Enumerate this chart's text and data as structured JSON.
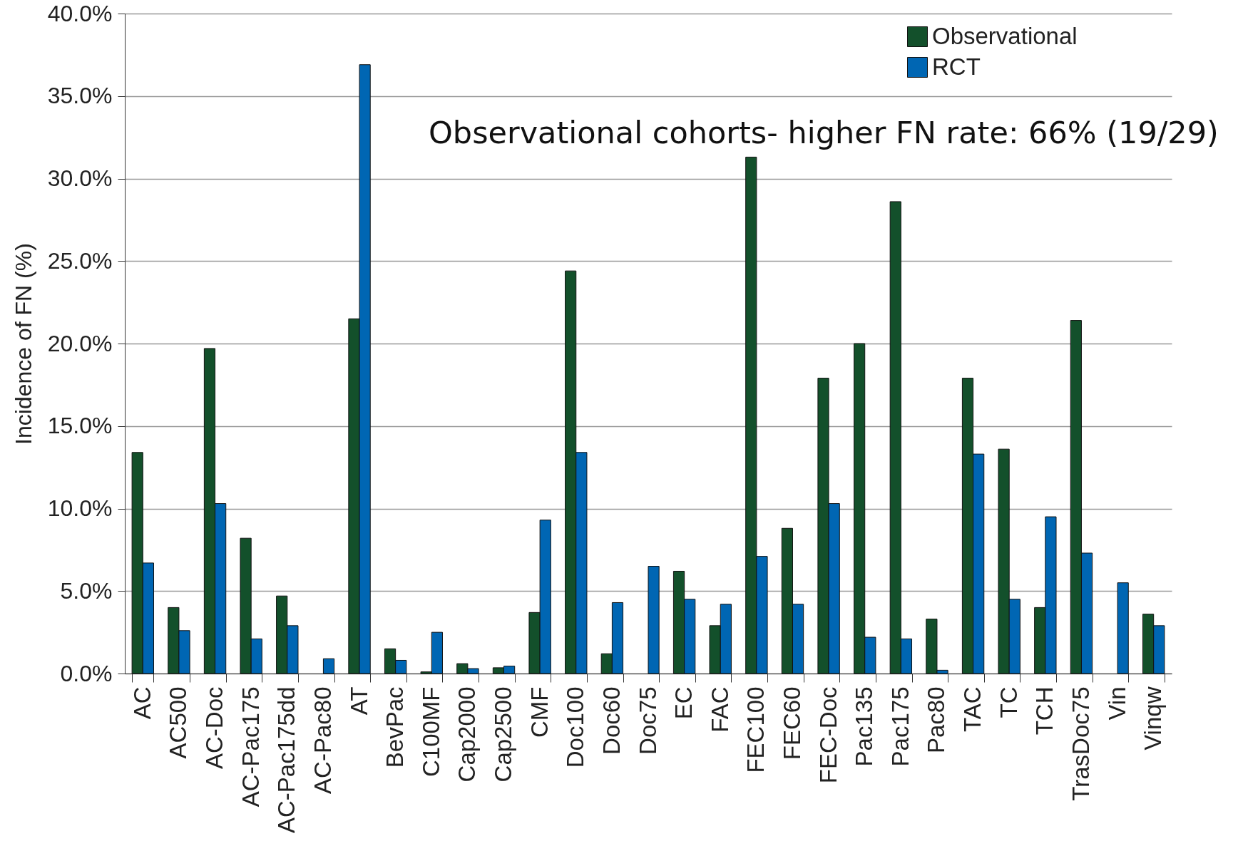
{
  "chart_data": {
    "type": "bar",
    "ylabel": "Incidence of FN (%)",
    "annotations": [
      "Observational cohorts- higher FN rate: 66% (19/29)"
    ],
    "categories": [
      "AC",
      "AC500",
      "AC-Doc",
      "AC-Pac175",
      "AC-Pac175dd",
      "AC-Pac80",
      "AT",
      "BevPac",
      "C100MF",
      "Cap2000",
      "Cap2500",
      "CMF",
      "Doc100",
      "Doc60",
      "Doc75",
      "EC",
      "FAC",
      "FEC100",
      "FEC60",
      "FEC-Doc",
      "Pac135",
      "Pac175",
      "Pac80",
      "TAC",
      "TC",
      "TCH",
      "TrasDoc75",
      "Vin",
      "Vinqw"
    ],
    "series": [
      {
        "name": "Observational",
        "color": "#13502b",
        "values": [
          13.4,
          4.0,
          19.7,
          8.2,
          4.7,
          null,
          21.5,
          1.5,
          0.1,
          0.6,
          0.35,
          3.7,
          24.4,
          1.2,
          null,
          6.2,
          2.9,
          31.3,
          8.8,
          17.9,
          20.0,
          28.6,
          3.3,
          17.9,
          13.6,
          4.0,
          21.4,
          null,
          3.6
        ]
      },
      {
        "name": "RCT",
        "color": "#0066b3",
        "values": [
          6.7,
          2.6,
          10.3,
          2.1,
          2.9,
          0.9,
          36.9,
          0.8,
          2.5,
          0.3,
          0.45,
          9.3,
          13.4,
          4.3,
          6.5,
          4.5,
          4.2,
          7.1,
          4.2,
          10.3,
          2.2,
          2.1,
          0.2,
          13.3,
          4.5,
          9.5,
          7.3,
          5.5,
          2.9
        ]
      }
    ],
    "ylim": [
      0,
      40
    ],
    "yticks": [
      {
        "value": 0,
        "label": "0.0%"
      },
      {
        "value": 5,
        "label": "5.0%"
      },
      {
        "value": 10,
        "label": "10.0%"
      },
      {
        "value": 15,
        "label": "15.0%"
      },
      {
        "value": 20,
        "label": "20.0%"
      },
      {
        "value": 25,
        "label": "25.0%"
      },
      {
        "value": 30,
        "label": "30.0%"
      },
      {
        "value": 35,
        "label": "35.0%"
      },
      {
        "value": 40,
        "label": "40.0%"
      }
    ],
    "grid": "y",
    "legend": "top right"
  }
}
